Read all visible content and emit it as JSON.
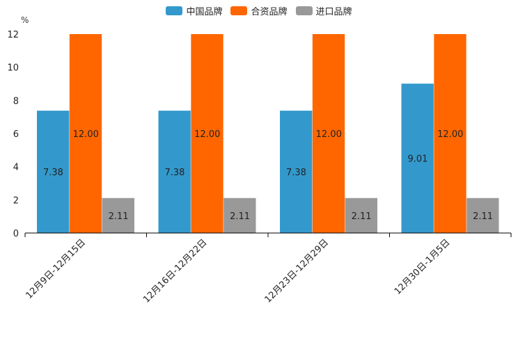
{
  "chart_data": {
    "type": "bar",
    "unit": "%",
    "categories": [
      "12月9日-12月15日",
      "12月16日-12月22日",
      "12月23日-12月29日",
      "12月30日-1月5日"
    ],
    "series": [
      {
        "name": "中国品牌",
        "color": "#3399cc",
        "values": [
          7.38,
          7.38,
          7.38,
          9.01
        ],
        "labels": [
          "7.38",
          "7.38",
          "7.38",
          "9.01"
        ]
      },
      {
        "name": "合资品牌",
        "color": "#ff6600",
        "values": [
          12.0,
          12.0,
          12.0,
          12.0
        ],
        "labels": [
          "12.00",
          "12.00",
          "12.00",
          "12.00"
        ]
      },
      {
        "name": "进口品牌",
        "color": "#999999",
        "values": [
          2.11,
          2.11,
          2.11,
          2.11
        ],
        "labels": [
          "2.11",
          "2.11",
          "2.11",
          "2.11"
        ]
      }
    ],
    "ylim": [
      0,
      12
    ],
    "yticks": [
      0,
      2,
      4,
      6,
      8,
      10,
      12
    ],
    "legend_position": "top-center",
    "grid": false
  }
}
